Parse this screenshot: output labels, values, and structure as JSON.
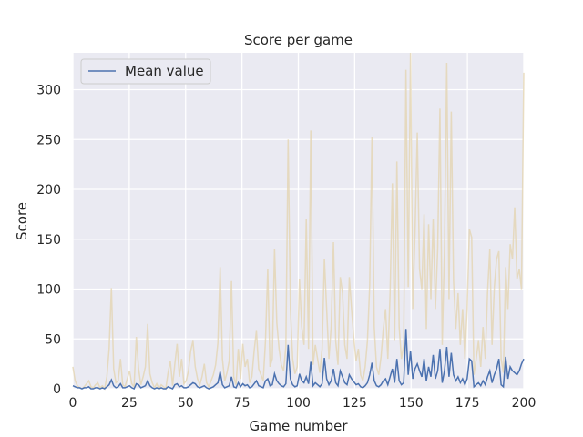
{
  "chart_data": {
    "type": "line",
    "title": "Score per game",
    "xlabel": "Game number",
    "ylabel": "Score",
    "xlim": [
      0,
      200
    ],
    "ylim": [
      0,
      337
    ],
    "xticks": [
      0,
      25,
      50,
      75,
      100,
      125,
      150,
      175,
      200
    ],
    "yticks": [
      0,
      50,
      100,
      150,
      200,
      250,
      300
    ],
    "grid": true,
    "legend": "top-left",
    "colors": {
      "background": "#eaeaf2",
      "grid": "#ffffff",
      "mean": "#4c72b0",
      "raw": "#e3d3ad"
    },
    "series": [
      {
        "name": "Mean value",
        "role": "mean",
        "values": [
          3,
          2,
          1,
          1,
          0,
          1,
          1,
          2,
          0,
          0,
          1,
          1,
          0,
          1,
          0,
          2,
          4,
          9,
          3,
          1,
          2,
          5,
          1,
          1,
          2,
          3,
          1,
          0,
          5,
          4,
          1,
          2,
          3,
          8,
          3,
          1,
          0,
          1,
          0,
          1,
          0,
          0,
          2,
          1,
          0,
          4,
          5,
          2,
          3,
          1,
          1,
          2,
          4,
          6,
          5,
          2,
          1,
          2,
          3,
          1,
          0,
          1,
          2,
          4,
          6,
          17,
          4,
          1,
          2,
          3,
          12,
          2,
          1,
          6,
          2,
          5,
          3,
          4,
          1,
          2,
          5,
          8,
          3,
          2,
          1,
          8,
          10,
          3,
          4,
          15,
          8,
          5,
          3,
          2,
          5,
          44,
          10,
          4,
          2,
          3,
          15,
          8,
          6,
          12,
          5,
          27,
          3,
          6,
          4,
          2,
          5,
          31,
          10,
          4,
          8,
          20,
          6,
          3,
          18,
          12,
          6,
          4,
          14,
          10,
          7,
          4,
          5,
          2,
          1,
          3,
          6,
          14,
          26,
          8,
          3,
          2,
          4,
          8,
          10,
          4,
          12,
          20,
          6,
          30,
          8,
          4,
          6,
          60,
          14,
          38,
          10,
          20,
          25,
          18,
          12,
          30,
          8,
          22,
          12,
          34,
          10,
          18,
          40,
          6,
          18,
          42,
          12,
          36,
          14,
          8,
          12,
          6,
          10,
          4,
          10,
          30,
          28,
          2,
          4,
          6,
          3,
          8,
          4,
          12,
          18,
          6,
          14,
          20,
          30,
          4,
          2,
          32,
          10,
          22,
          18,
          16,
          14,
          18,
          25,
          30
        ]
      },
      {
        "name": "",
        "role": "raw",
        "values": [
          22,
          8,
          3,
          1,
          0,
          2,
          5,
          8,
          2,
          1,
          4,
          6,
          1,
          3,
          0,
          12,
          40,
          101,
          20,
          6,
          8,
          30,
          4,
          2,
          10,
          18,
          5,
          2,
          52,
          20,
          4,
          12,
          22,
          65,
          15,
          6,
          1,
          5,
          0,
          4,
          2,
          0,
          16,
          28,
          3,
          25,
          45,
          12,
          30,
          5,
          8,
          18,
          38,
          48,
          22,
          10,
          4,
          12,
          25,
          6,
          2,
          8,
          14,
          24,
          46,
          122,
          30,
          8,
          16,
          28,
          108,
          12,
          4,
          40,
          10,
          45,
          22,
          30,
          6,
          12,
          38,
          58,
          20,
          14,
          8,
          48,
          120,
          22,
          30,
          140,
          66,
          40,
          24,
          18,
          42,
          250,
          80,
          30,
          15,
          22,
          110,
          62,
          44,
          170,
          40,
          259,
          24,
          44,
          30,
          16,
          40,
          130,
          80,
          30,
          62,
          147,
          48,
          24,
          112,
          96,
          44,
          30,
          112,
          80,
          50,
          28,
          40,
          14,
          8,
          22,
          48,
          104,
          253,
          62,
          22,
          14,
          32,
          60,
          80,
          30,
          96,
          206,
          48,
          228,
          62,
          30,
          44,
          320,
          102,
          337,
          80,
          156,
          257,
          120,
          100,
          175,
          60,
          165,
          90,
          170,
          80,
          140,
          281,
          44,
          140,
          327,
          90,
          278,
          108,
          60,
          96,
          44,
          80,
          30,
          80,
          160,
          152,
          14,
          30,
          48,
          22,
          62,
          30,
          96,
          140,
          44,
          102,
          130,
          138,
          30,
          16,
          122,
          80,
          145,
          130,
          182,
          110,
          120,
          100,
          317
        ]
      }
    ]
  }
}
